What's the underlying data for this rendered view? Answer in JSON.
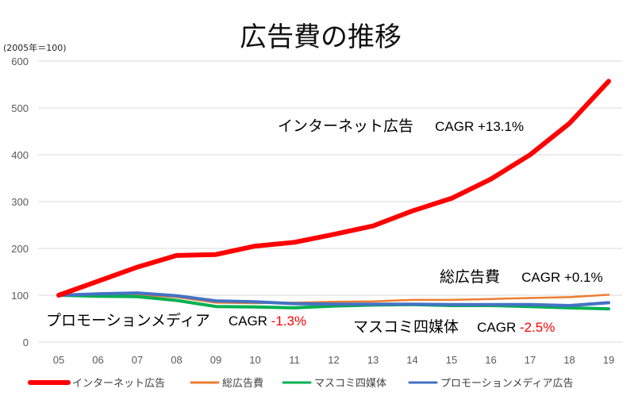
{
  "chart_data": {
    "type": "line",
    "title": "広告費の推移",
    "unit_note": "(2005年＝100)",
    "categories": [
      "05",
      "06",
      "07",
      "08",
      "09",
      "10",
      "11",
      "12",
      "13",
      "14",
      "15",
      "16",
      "17",
      "18",
      "19"
    ],
    "ylim": [
      0,
      600
    ],
    "yticks": [
      0,
      100,
      200,
      300,
      400,
      500,
      600
    ],
    "grid": true,
    "legend_position": "bottom",
    "series": [
      {
        "name": "インターネット広告",
        "color": "#ff0000",
        "values": [
          100,
          130,
          160,
          185,
          187,
          205,
          213,
          230,
          248,
          280,
          307,
          348,
          400,
          467,
          557
        ]
      },
      {
        "name": "総広告費",
        "color": "#ed7d31",
        "values": [
          100,
          101,
          101,
          96,
          84,
          83,
          84,
          86,
          87,
          90,
          90,
          92,
          94,
          96,
          101
        ]
      },
      {
        "name": "マスコミ四媒体",
        "color": "#00b050",
        "values": [
          100,
          98,
          97,
          89,
          76,
          75,
          73,
          77,
          79,
          80,
          78,
          78,
          76,
          73,
          71
        ]
      },
      {
        "name": "プロモーションメディア広告",
        "color": "#4472c4",
        "values": [
          100,
          103,
          105,
          99,
          88,
          86,
          82,
          81,
          81,
          81,
          80,
          80,
          80,
          78,
          84
        ]
      }
    ],
    "annotations": {
      "internet": {
        "label": "インターネット広告",
        "cagr_prefix": "CAGR ",
        "cagr_value": "+13.1%"
      },
      "total": {
        "label": "総広告費",
        "cagr_prefix": "CAGR ",
        "cagr_value": "+0.1%"
      },
      "promo": {
        "label": "プロモーションメディア",
        "cagr_prefix": "CAGR ",
        "cagr_value": "-1.3%"
      },
      "mass": {
        "label": "マスコミ四媒体",
        "cagr_prefix": "CAGR ",
        "cagr_value": "-2.5%"
      }
    }
  }
}
